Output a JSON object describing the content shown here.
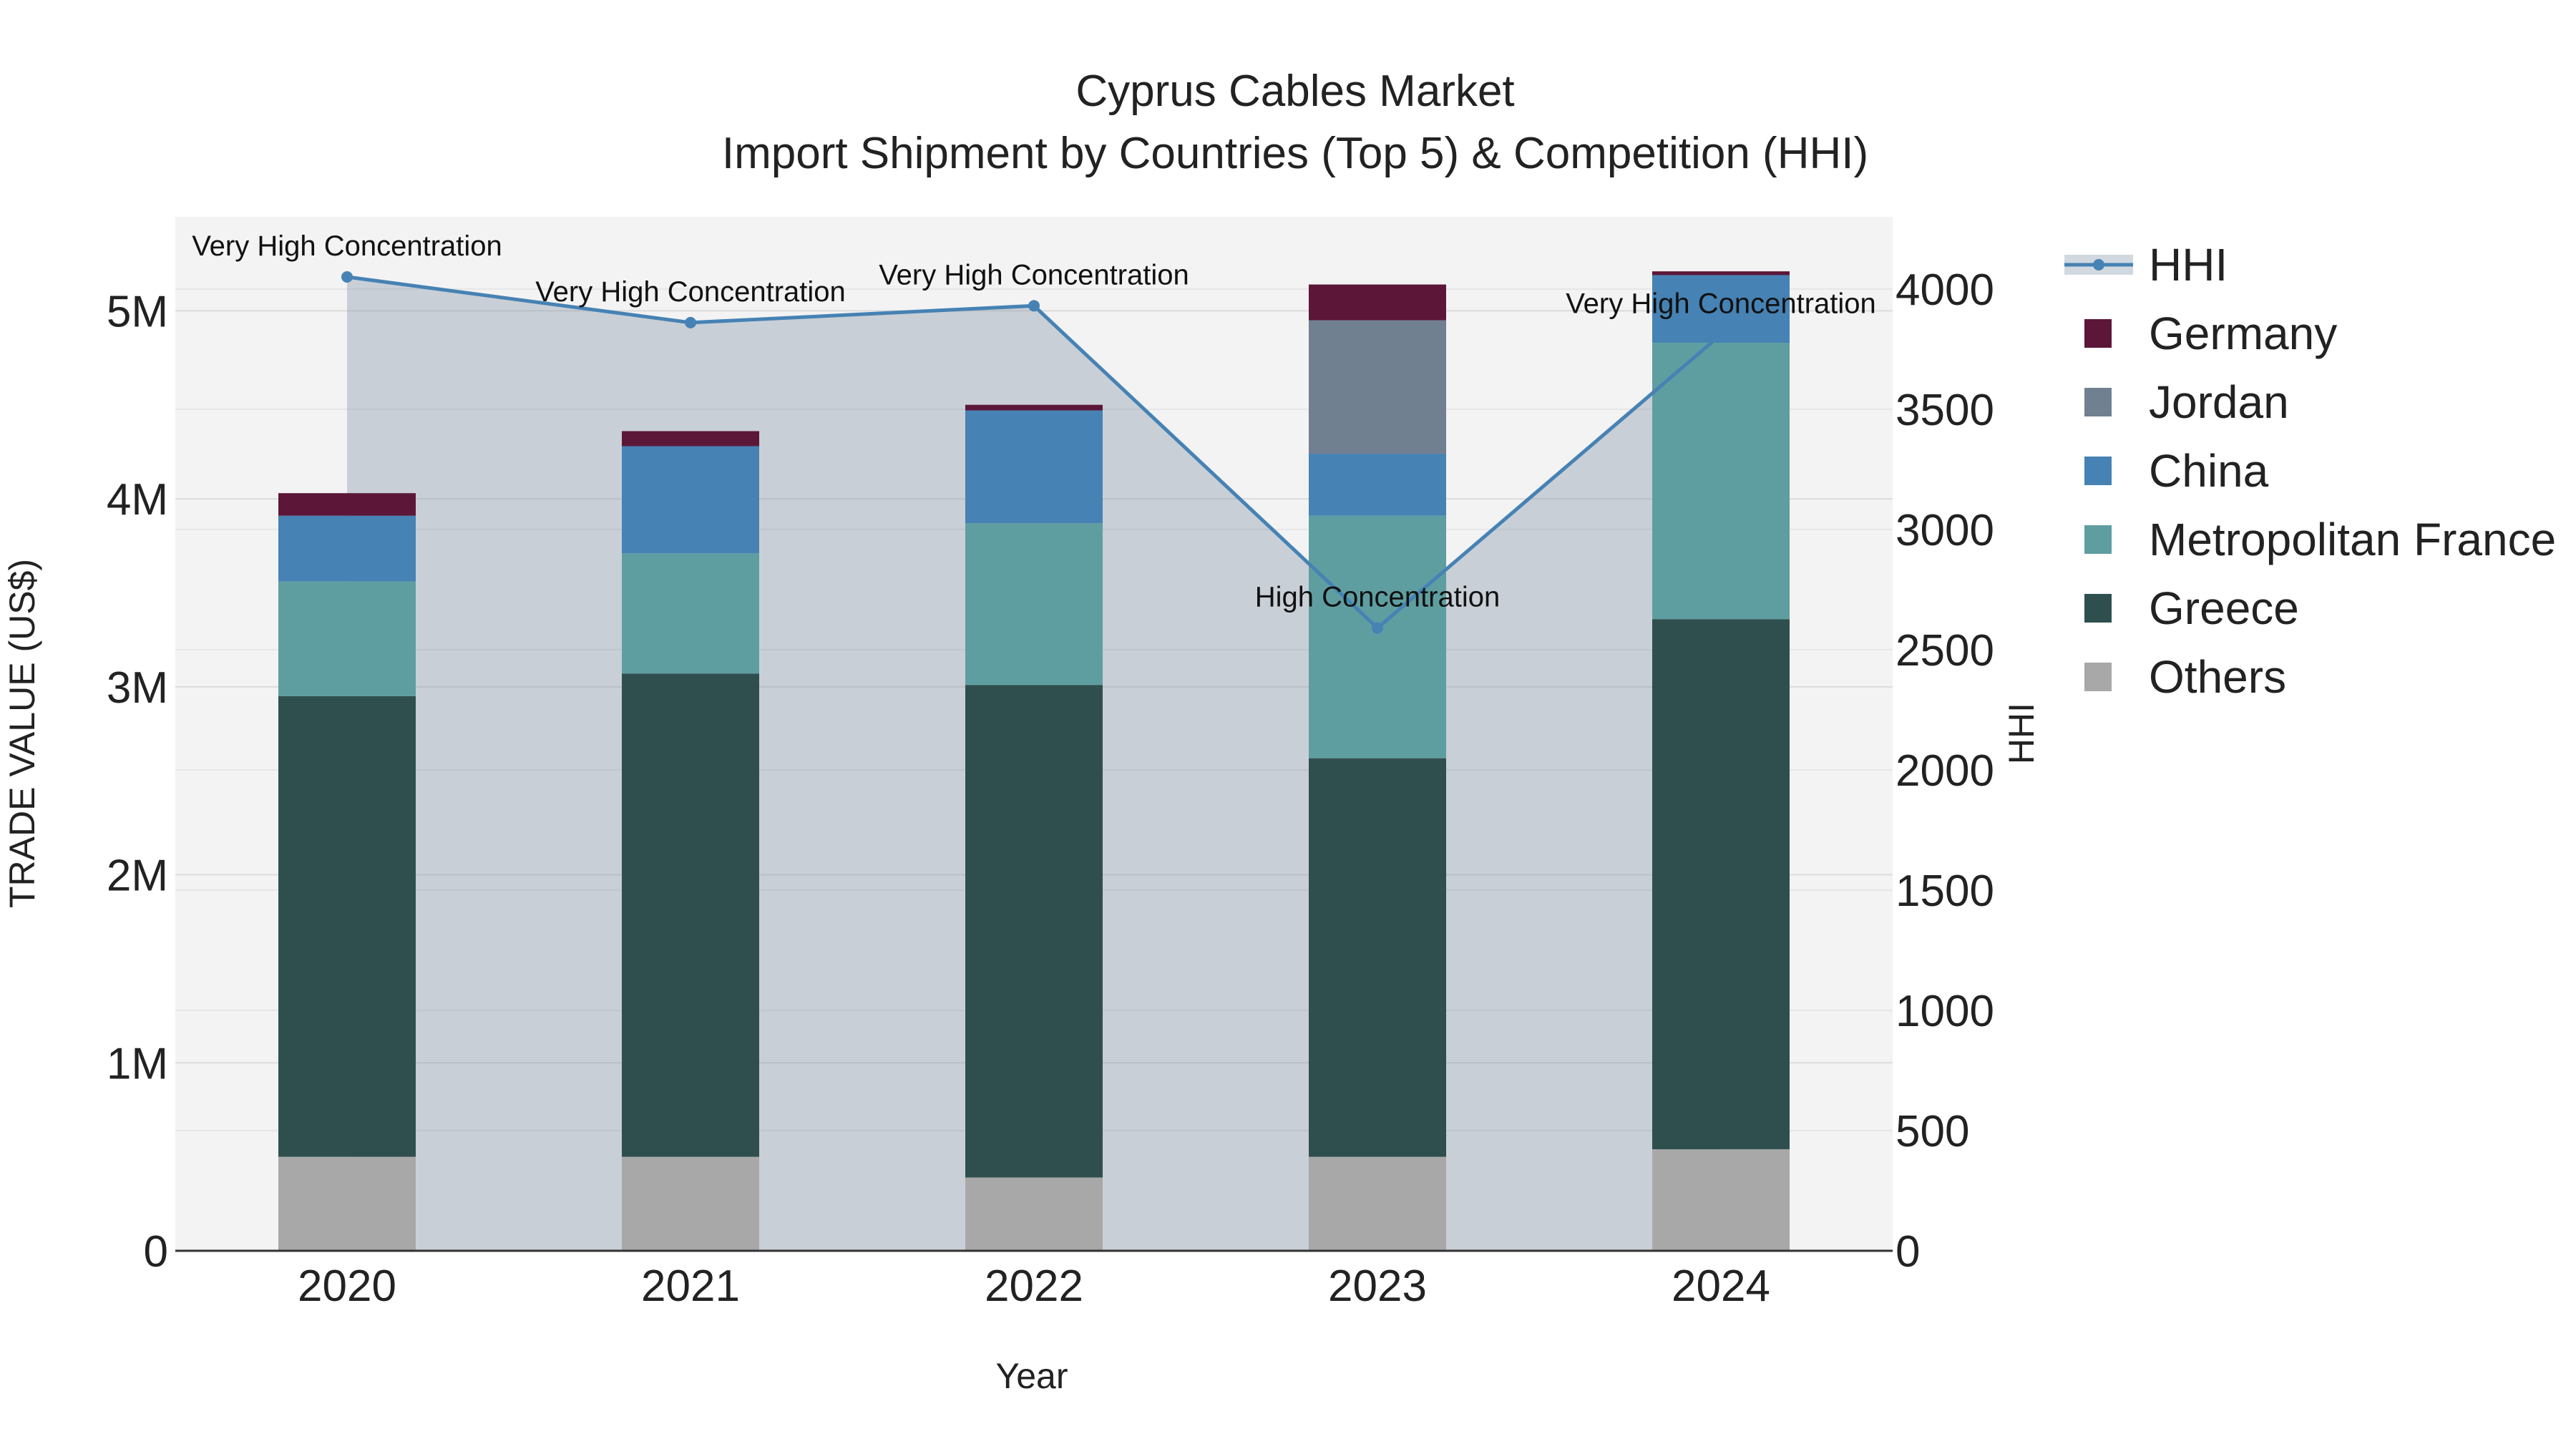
{
  "chart_data": {
    "type": "bar",
    "title": "Cyprus Cables Market",
    "subtitle": "Import Shipment by Countries (Top 5) & Competition (HHI)",
    "xlabel": "Year",
    "ylabel": "TRADE VALUE (US$)",
    "y2label": "HHI",
    "categories": [
      "2020",
      "2021",
      "2022",
      "2023",
      "2024"
    ],
    "ylim": [
      0,
      5500000
    ],
    "y2lim": [
      0,
      4300
    ],
    "yticks": [
      {
        "value": 0,
        "label": "0"
      },
      {
        "value": 1000000,
        "label": "1M"
      },
      {
        "value": 2000000,
        "label": "2M"
      },
      {
        "value": 3000000,
        "label": "3M"
      },
      {
        "value": 4000000,
        "label": "4M"
      },
      {
        "value": 5000000,
        "label": "5M"
      }
    ],
    "y2ticks": [
      {
        "value": 0,
        "label": "0"
      },
      {
        "value": 500,
        "label": "500"
      },
      {
        "value": 1000,
        "label": "1000"
      },
      {
        "value": 1500,
        "label": "1500"
      },
      {
        "value": 2000,
        "label": "2000"
      },
      {
        "value": 2500,
        "label": "2500"
      },
      {
        "value": 3000,
        "label": "3000"
      },
      {
        "value": 3500,
        "label": "3500"
      },
      {
        "value": 4000,
        "label": "4000"
      }
    ],
    "series": [
      {
        "name": "Others",
        "color": "#a8a8a8",
        "values": [
          500000,
          500000,
          390000,
          500000,
          540000
        ]
      },
      {
        "name": "Greece",
        "color": "#2f4f4f",
        "values": [
          2450000,
          2570000,
          2620000,
          2120000,
          2820000
        ]
      },
      {
        "name": "Metropolitan France",
        "color": "#5f9ea0",
        "values": [
          610000,
          640000,
          860000,
          1290000,
          1470000
        ]
      },
      {
        "name": "China",
        "color": "#4682b4",
        "values": [
          350000,
          570000,
          600000,
          330000,
          360000
        ]
      },
      {
        "name": "Jordan",
        "color": "#708090",
        "values": [
          0,
          0,
          0,
          710000,
          0
        ]
      },
      {
        "name": "Germany",
        "color": "#5c1738",
        "values": [
          120000,
          80000,
          30000,
          190000,
          20000
        ]
      }
    ],
    "legend_order": [
      "Germany",
      "Jordan",
      "China",
      "Metropolitan France",
      "Greece",
      "Others"
    ],
    "hhi": {
      "name": "HHI",
      "color": "#4682b4",
      "values": [
        4050,
        3860,
        3930,
        2590,
        3810
      ],
      "labels": [
        "Very High Concentration",
        "Very High Concentration",
        "Very High Concentration",
        "High Concentration",
        "Very High Concentration"
      ]
    },
    "legend_position": "right"
  }
}
